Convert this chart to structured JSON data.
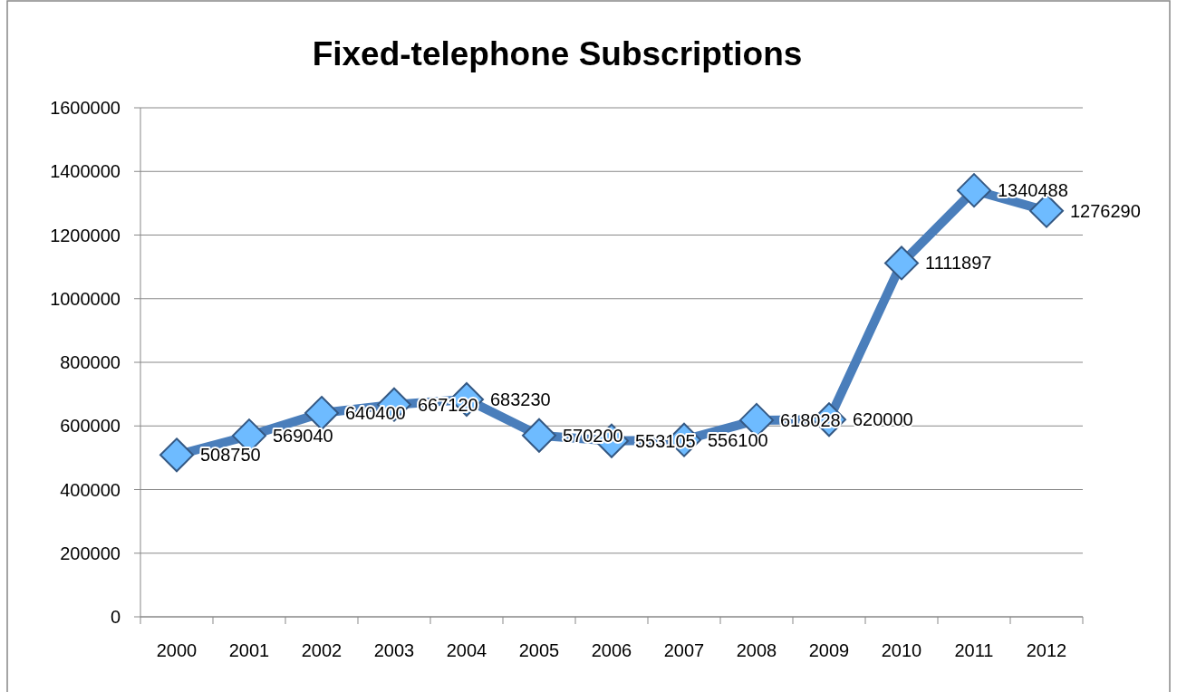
{
  "chart_data": {
    "type": "line",
    "title": "Fixed-telephone Subscriptions",
    "categories": [
      "2000",
      "2001",
      "2002",
      "2003",
      "2004",
      "2005",
      "2006",
      "2007",
      "2008",
      "2009",
      "2010",
      "2011",
      "2012"
    ],
    "series": [
      {
        "color": "#4a7ebb",
        "values": [
          508750,
          569040,
          640400,
          667120,
          683230,
          570200,
          553105,
          556100,
          618028,
          620000,
          1111897,
          1340488,
          1276290
        ]
      }
    ],
    "ylim": [
      0,
      1600000
    ],
    "yticks": [
      0,
      200000,
      400000,
      600000,
      800000,
      1000000,
      1200000,
      1400000,
      1600000
    ],
    "grid": "y",
    "marker": "diamond",
    "line_style": "solid",
    "data_labels": true
  }
}
